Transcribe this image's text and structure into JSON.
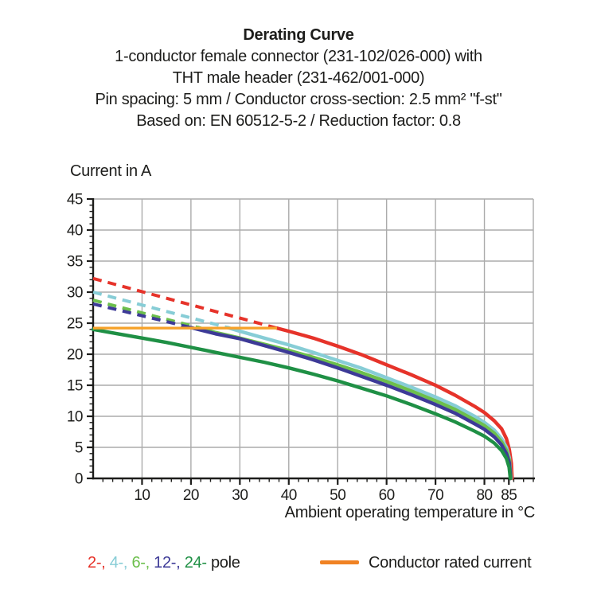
{
  "header": {
    "title": "Derating Curve",
    "subtitle_lines": [
      "1-conductor female connector (231-102/026-000) with",
      "THT male header (231-462/001-000)",
      "Pin spacing: 5 mm / Conductor cross-section: 2.5 mm² \"f-st\"",
      "Based on: EN 60512-5-2 / Reduction factor: 0.8"
    ]
  },
  "legend": {
    "poles": [
      {
        "name": "2-pole",
        "label": "2-,",
        "color": "#E6332A"
      },
      {
        "name": "4-pole",
        "label": "4-,",
        "color": "#87CDD6"
      },
      {
        "name": "6-pole",
        "label": "6-,",
        "color": "#6CBF4C"
      },
      {
        "name": "12-pole",
        "label": "12-,",
        "color": "#3D3A97"
      },
      {
        "name": "24-pole",
        "label": "24-",
        "color": "#1F9045"
      }
    ],
    "pole_suffix": "pole",
    "rated_label": "Conductor rated current",
    "rated_swatch_color": "#F08223",
    "text_color": "#1d1d1b"
  },
  "chart_data": {
    "type": "line",
    "title": "Derating Curve",
    "ylabel": "Current in A",
    "xlabel": "Ambient operating temperature in °C",
    "xlim": [
      0,
      90
    ],
    "ylim": [
      0,
      45
    ],
    "x_ticks_major": [
      10,
      20,
      30,
      40,
      50,
      60,
      70,
      80,
      85
    ],
    "x_minor_step": 2,
    "y_ticks_major": [
      0,
      5,
      10,
      15,
      20,
      25,
      30,
      35,
      40,
      45
    ],
    "y_minor_step": 1,
    "x_gridlines": [
      10,
      20,
      30,
      40,
      50,
      60,
      70,
      80,
      90
    ],
    "y_gridlines": [
      5,
      10,
      15,
      20,
      25,
      30,
      35,
      40,
      45
    ],
    "grid_on": true,
    "grid_color": "#ABABAB",
    "axis_color": "#1d1d1b",
    "legend_position": "bottom",
    "rated_current": {
      "label": "Conductor rated current",
      "color": "#F6A22B",
      "value": 24.2,
      "points": [
        [
          0,
          24.2
        ],
        [
          37.6,
          24.2
        ]
      ]
    },
    "series": [
      {
        "name": "2-pole",
        "color": "#E6332A",
        "style": "dashed-above-rated-then-solid",
        "dashed": [
          [
            0,
            32.2
          ],
          [
            37.6,
            24.2
          ]
        ],
        "solid": [
          [
            37.6,
            24.2
          ],
          [
            40,
            23.7
          ],
          [
            45,
            22.6
          ],
          [
            50,
            21.3
          ],
          [
            55,
            19.9
          ],
          [
            60,
            18.3
          ],
          [
            65,
            16.7
          ],
          [
            70,
            15.0
          ],
          [
            74,
            13.4
          ],
          [
            78,
            11.6
          ],
          [
            80,
            10.6
          ],
          [
            82,
            9.3
          ],
          [
            83.5,
            8.0
          ],
          [
            84.5,
            6.4
          ],
          [
            85.1,
            4.6
          ],
          [
            85.5,
            2.4
          ],
          [
            85.65,
            0
          ]
        ]
      },
      {
        "name": "4-pole",
        "color": "#87CDD6",
        "style": "dashed-above-rated-then-solid",
        "dashed": [
          [
            0,
            30.0
          ],
          [
            27.5,
            24.3
          ]
        ],
        "solid": [
          [
            27.5,
            24.3
          ],
          [
            30,
            23.7
          ],
          [
            35,
            22.6
          ],
          [
            40,
            21.5
          ],
          [
            45,
            20.3
          ],
          [
            50,
            19.0
          ],
          [
            55,
            17.7
          ],
          [
            60,
            16.2
          ],
          [
            65,
            14.7
          ],
          [
            70,
            13.1
          ],
          [
            74,
            11.7
          ],
          [
            78,
            10.0
          ],
          [
            80,
            9.0
          ],
          [
            82,
            7.8
          ],
          [
            83.5,
            6.4
          ],
          [
            84.5,
            5.0
          ],
          [
            85.1,
            3.3
          ],
          [
            85.45,
            0
          ]
        ]
      },
      {
        "name": "6-pole",
        "color": "#6CBF4C",
        "style": "dashed-above-rated-then-solid",
        "dashed": [
          [
            0,
            28.7
          ],
          [
            21.5,
            24.3
          ]
        ],
        "solid": [
          [
            21.5,
            24.3
          ],
          [
            25,
            23.5
          ],
          [
            30,
            22.6
          ],
          [
            35,
            21.6
          ],
          [
            40,
            20.6
          ],
          [
            45,
            19.5
          ],
          [
            50,
            18.3
          ],
          [
            55,
            17.0
          ],
          [
            60,
            15.6
          ],
          [
            65,
            14.1
          ],
          [
            70,
            12.5
          ],
          [
            74,
            11.1
          ],
          [
            78,
            9.4
          ],
          [
            80,
            8.5
          ],
          [
            82,
            7.3
          ],
          [
            83.5,
            5.9
          ],
          [
            84.5,
            4.5
          ],
          [
            85.1,
            2.9
          ],
          [
            85.4,
            0
          ]
        ]
      },
      {
        "name": "12-pole",
        "color": "#3D3A97",
        "style": "dashed-above-rated-then-solid",
        "dashed": [
          [
            0,
            28.1
          ],
          [
            20,
            24.3
          ]
        ],
        "solid": [
          [
            20,
            24.3
          ],
          [
            25,
            23.3
          ],
          [
            30,
            22.5
          ],
          [
            35,
            21.4
          ],
          [
            40,
            20.3
          ],
          [
            45,
            19.1
          ],
          [
            50,
            17.8
          ],
          [
            55,
            16.4
          ],
          [
            60,
            15.0
          ],
          [
            65,
            13.5
          ],
          [
            70,
            11.9
          ],
          [
            74,
            10.5
          ],
          [
            78,
            8.8
          ],
          [
            80,
            7.9
          ],
          [
            82,
            6.7
          ],
          [
            83.5,
            5.4
          ],
          [
            84.5,
            4.0
          ],
          [
            85.1,
            2.5
          ],
          [
            85.35,
            0
          ]
        ]
      },
      {
        "name": "24-pole",
        "color": "#1F9045",
        "style": "solid",
        "solid": [
          [
            0,
            24.0
          ],
          [
            5,
            23.3
          ],
          [
            10,
            22.6
          ],
          [
            15,
            21.9
          ],
          [
            20,
            21.1
          ],
          [
            25,
            20.3
          ],
          [
            30,
            19.5
          ],
          [
            35,
            18.7
          ],
          [
            40,
            17.8
          ],
          [
            45,
            16.8
          ],
          [
            50,
            15.7
          ],
          [
            55,
            14.5
          ],
          [
            60,
            13.3
          ],
          [
            65,
            11.9
          ],
          [
            70,
            10.4
          ],
          [
            74,
            9.1
          ],
          [
            78,
            7.6
          ],
          [
            80,
            6.8
          ],
          [
            82,
            5.7
          ],
          [
            83.5,
            4.5
          ],
          [
            84.5,
            3.2
          ],
          [
            85.05,
            1.8
          ],
          [
            85.3,
            0
          ]
        ]
      }
    ]
  }
}
